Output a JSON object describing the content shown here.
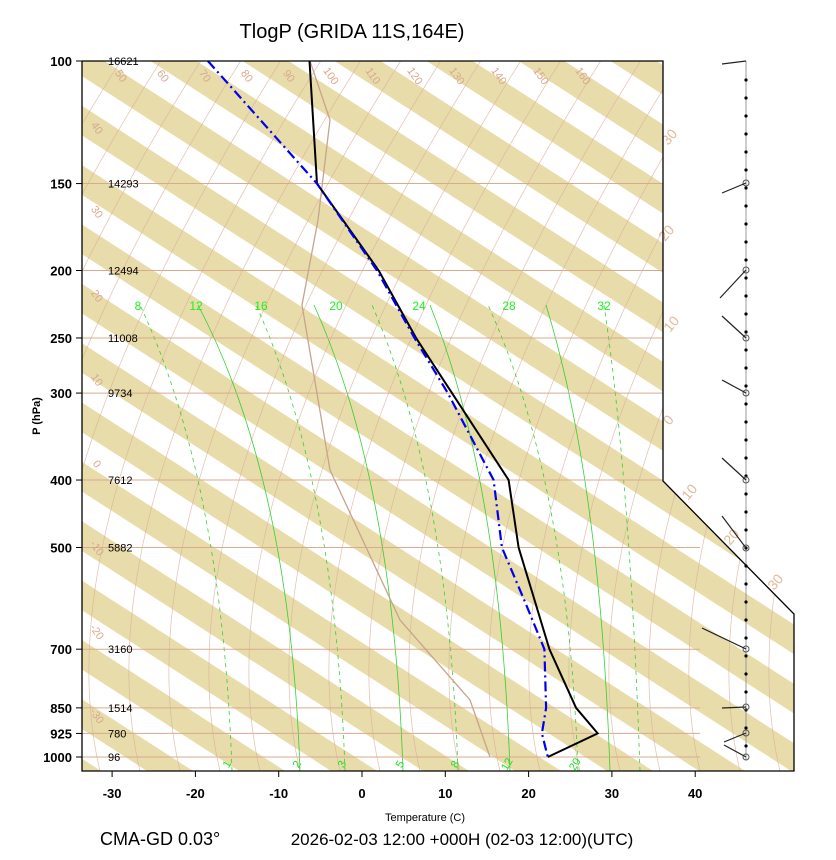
{
  "title": "TlogP   (GRIDA  11S,164E)",
  "footer_left": "CMA-GD 0.03°",
  "footer_right": "2026-02-03 12:00 +000H (02-03 12:00)(UTC)",
  "colors": {
    "band": "#e8dcaa",
    "isobar": "#d9aa8c",
    "temperature": "#000000",
    "dewpoint": "#0000ee",
    "mixing_ratio": "#22cc22",
    "adiabat": "#d9b09a"
  },
  "chart_data": {
    "type": "skew-t log-p",
    "xlabel": "Temperature (C)",
    "ylabel": "P (hPa)",
    "xlim": [
      -33,
      52
    ],
    "x_ticks": [
      -30,
      -20,
      -10,
      0,
      10,
      20,
      30,
      40
    ],
    "x_tick_labels": [
      "-30",
      "-20",
      "-10",
      "0",
      "10",
      "20",
      "30",
      "40"
    ],
    "pressure_levels": [
      100,
      150,
      200,
      250,
      300,
      400,
      500,
      700,
      850,
      925,
      1000
    ],
    "pressure_labels": [
      "100",
      "150",
      "200",
      "250",
      "300",
      "400",
      "500",
      "700",
      "850",
      "925",
      "1000"
    ],
    "heights": [
      "16621",
      "14293",
      "12494",
      "11008",
      "9734",
      "7612",
      "5882",
      "3160",
      "1514",
      "780",
      "96"
    ],
    "temperature_profile": [
      {
        "p": 100,
        "x": -6.3
      },
      {
        "p": 150,
        "x": -5.4
      },
      {
        "p": 200,
        "x": 2.0
      },
      {
        "p": 250,
        "x": 6.5
      },
      {
        "p": 300,
        "x": 10.8
      },
      {
        "p": 400,
        "x": 17.6
      },
      {
        "p": 500,
        "x": 18.8
      },
      {
        "p": 600,
        "x": 20.8
      },
      {
        "p": 700,
        "x": 22.5
      },
      {
        "p": 850,
        "x": 25.7
      },
      {
        "p": 925,
        "x": 28.3
      },
      {
        "p": 1000,
        "x": 22.3
      }
    ],
    "dewpoint_profile": [
      {
        "p": 100,
        "x": -18.5
      },
      {
        "p": 150,
        "x": -5.4
      },
      {
        "p": 200,
        "x": 1.8
      },
      {
        "p": 250,
        "x": 6.3
      },
      {
        "p": 300,
        "x": 10.3
      },
      {
        "p": 400,
        "x": 15.8
      },
      {
        "p": 500,
        "x": 16.8
      },
      {
        "p": 600,
        "x": 19.6
      },
      {
        "p": 700,
        "x": 21.9
      },
      {
        "p": 850,
        "x": 22.1
      },
      {
        "p": 925,
        "x": 21.6
      },
      {
        "p": 1000,
        "x": 22.3
      }
    ],
    "mixing_ratio_top_labels": [
      "8",
      "12",
      "16",
      "20",
      "24",
      "28",
      "32"
    ],
    "mixing_ratio_bottom_labels": [
      "1",
      "2",
      "3",
      "5",
      "8",
      "12",
      "20"
    ],
    "potential_temperature_labels": [
      "50",
      "60",
      "70",
      "80",
      "90",
      "100",
      "110",
      "120",
      "130",
      "140",
      "150",
      "160"
    ],
    "left_adiabat_labels": [
      "40",
      "30",
      "20",
      "10",
      "0",
      "-10",
      "-20",
      "-30"
    ],
    "right_labels": [
      "30",
      "20",
      "10",
      "0",
      "10",
      "20",
      "30"
    ]
  }
}
